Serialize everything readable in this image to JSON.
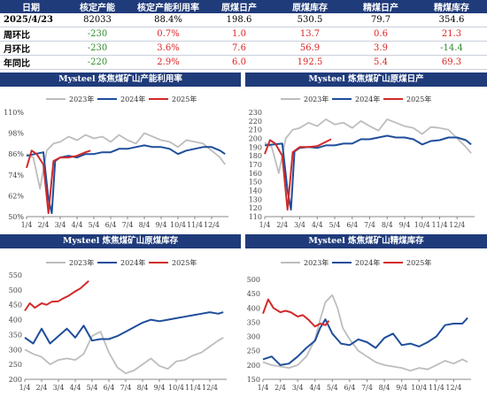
{
  "summary": {
    "headers": [
      "日期",
      "核定产能",
      "核定产能利用率",
      "原煤日产",
      "原煤库存",
      "精煤日产",
      "精煤库存"
    ],
    "rows": [
      {
        "label": "2025/4/23",
        "cells": [
          "82033",
          "88.4%",
          "198.6",
          "530.5",
          "79.7",
          "354.6"
        ],
        "kinds": [
          "neu",
          "neu",
          "neu",
          "neu",
          "neu",
          "neu"
        ]
      },
      {
        "label": "周环比",
        "cells": [
          "-230",
          "0.7%",
          "1.0",
          "13.7",
          "0.6",
          "21.3"
        ],
        "kinds": [
          "neg",
          "pos",
          "pos",
          "pos",
          "pos",
          "pos"
        ]
      },
      {
        "label": "月环比",
        "cells": [
          "-230",
          "3.6%",
          "7.6",
          "56.9",
          "3.9",
          "-14.4"
        ],
        "kinds": [
          "neg",
          "pos",
          "pos",
          "pos",
          "pos",
          "neg"
        ]
      },
      {
        "label": "年同比",
        "cells": [
          "-220",
          "2.9%",
          "6.0",
          "192.5",
          "5.4",
          "69.3"
        ],
        "kinds": [
          "neg",
          "pos",
          "pos",
          "pos",
          "pos",
          "pos"
        ]
      }
    ]
  },
  "colors": {
    "s2023": "#bdbdbd",
    "s2024": "#1f4e9b",
    "s2025": "#d22a2a",
    "header": "#1f3b7a",
    "axis": "#888888"
  },
  "chart_data": [
    {
      "type": "line",
      "title": "Mysteel 炼焦煤矿山产能利用率",
      "x_ticks": [
        "1/4",
        "2/4",
        "3/4",
        "4/4",
        "5/4",
        "6/4",
        "7/4",
        "8/4",
        "9/4",
        "10/4",
        "11/4",
        "12/4"
      ],
      "y_ticks": [
        "50%",
        "62%",
        "74%",
        "86%",
        "98%",
        "110%"
      ],
      "ylim": [
        50,
        110
      ],
      "legend": "top",
      "series": [
        {
          "name": "2023年",
          "x": [
            1,
            1.4,
            1.8,
            2.2,
            2.6,
            3,
            3.5,
            4,
            4.5,
            5,
            5.5,
            6,
            6.5,
            7,
            7.5,
            8,
            8.5,
            9,
            9.5,
            10,
            10.5,
            11,
            11.5,
            12,
            12.5,
            12.8
          ],
          "values": [
            86,
            84,
            66,
            88,
            92,
            93,
            96,
            94,
            97,
            95,
            96,
            93,
            97,
            94,
            92,
            98,
            96,
            94,
            93,
            90,
            94,
            93,
            92,
            88,
            84,
            80
          ]
        },
        {
          "name": "2024年",
          "x": [
            1,
            1.5,
            2,
            2.3,
            2.5,
            2.7,
            3,
            3.5,
            4,
            4.5,
            5,
            5.5,
            6,
            6.5,
            7,
            7.5,
            8,
            8.5,
            9,
            9.5,
            10,
            10.5,
            11,
            11.5,
            12,
            12.5,
            12.8
          ],
          "values": [
            85,
            86,
            87,
            60,
            52,
            82,
            84,
            85,
            84,
            86,
            86,
            87,
            87,
            89,
            89,
            90,
            91,
            90,
            90,
            89,
            86,
            88,
            89,
            90,
            90,
            88,
            86
          ]
        },
        {
          "name": "2025年",
          "x": [
            1,
            1.3,
            1.6,
            2,
            2.3,
            2.6,
            3,
            3.5,
            4,
            4.5,
            4.8
          ],
          "values": [
            78,
            88,
            86,
            80,
            52,
            82,
            84,
            84,
            85,
            87,
            88
          ]
        }
      ]
    },
    {
      "type": "line",
      "title": "Mysteel 炼焦煤矿山原煤日产",
      "x_ticks": [
        "1/4",
        "2/4",
        "3/4",
        "4/4",
        "5/4",
        "6/4",
        "7/4",
        "8/4",
        "9/4",
        "10/4",
        "11/4",
        "12/4"
      ],
      "y_ticks": [
        "110",
        "120",
        "130",
        "140",
        "150",
        "160",
        "170",
        "180",
        "190",
        "200",
        "210",
        "220",
        "230"
      ],
      "ylim": [
        110,
        230
      ],
      "legend": "top",
      "series": [
        {
          "name": "2023年",
          "x": [
            1,
            1.4,
            1.8,
            2.2,
            2.6,
            3,
            3.5,
            4,
            4.5,
            5,
            5.5,
            6,
            6.5,
            7,
            7.5,
            8,
            8.5,
            9,
            9.5,
            10,
            10.5,
            11,
            11.5,
            12,
            12.5,
            12.8
          ],
          "values": [
            195,
            190,
            160,
            200,
            210,
            212,
            218,
            214,
            222,
            216,
            218,
            212,
            220,
            214,
            209,
            222,
            218,
            214,
            212,
            205,
            213,
            212,
            210,
            200,
            190,
            183
          ]
        },
        {
          "name": "2024年",
          "x": [
            1,
            1.5,
            2,
            2.3,
            2.5,
            2.7,
            3,
            3.5,
            4,
            4.5,
            5,
            5.5,
            6,
            6.5,
            7,
            7.5,
            8,
            8.5,
            9,
            9.5,
            10,
            10.5,
            11,
            11.5,
            12,
            12.5,
            12.8
          ],
          "values": [
            192,
            193,
            194,
            140,
            118,
            185,
            189,
            190,
            189,
            192,
            192,
            194,
            194,
            199,
            199,
            201,
            203,
            201,
            201,
            199,
            193,
            197,
            198,
            201,
            201,
            198,
            193
          ]
        },
        {
          "name": "2025年",
          "x": [
            1,
            1.3,
            1.6,
            2,
            2.3,
            2.6,
            3,
            3.5,
            4,
            4.5,
            4.8
          ],
          "values": [
            182,
            198,
            194,
            180,
            118,
            184,
            190,
            190,
            191,
            196,
            199
          ]
        }
      ]
    },
    {
      "type": "line",
      "title": "Mysteel 炼焦煤矿山原煤库存",
      "x_ticks": [
        "1/4",
        "2/4",
        "3/4",
        "4/4",
        "5/4",
        "6/4",
        "7/4",
        "8/4",
        "9/4",
        "10/4",
        "11/4",
        "12/4"
      ],
      "y_ticks": [
        "200",
        "250",
        "300",
        "350",
        "400",
        "450",
        "500",
        "550"
      ],
      "ylim": [
        200,
        550
      ],
      "legend": "top",
      "series": [
        {
          "name": "2023年",
          "x": [
            1,
            1.5,
            2,
            2.5,
            3,
            3.5,
            4,
            4.5,
            5,
            5.5,
            6,
            6.5,
            7,
            7.5,
            8,
            8.5,
            9,
            9.5,
            10,
            10.5,
            11,
            11.5,
            12,
            12.5,
            12.8
          ],
          "values": [
            300,
            285,
            275,
            250,
            265,
            270,
            265,
            285,
            345,
            360,
            290,
            240,
            220,
            230,
            250,
            270,
            245,
            235,
            260,
            265,
            280,
            290,
            310,
            330,
            340
          ]
        },
        {
          "name": "2024年",
          "x": [
            1,
            1.5,
            2,
            2.5,
            3,
            3.5,
            4,
            4.5,
            5,
            5.5,
            6,
            6.5,
            7,
            7.5,
            8,
            8.5,
            9,
            9.5,
            10,
            10.5,
            11,
            11.5,
            12,
            12.5,
            12.8
          ],
          "values": [
            340,
            320,
            370,
            320,
            345,
            370,
            340,
            380,
            330,
            335,
            335,
            345,
            360,
            375,
            390,
            400,
            395,
            400,
            405,
            410,
            415,
            420,
            425,
            420,
            425
          ]
        },
        {
          "name": "2025年",
          "x": [
            1,
            1.3,
            1.6,
            2,
            2.3,
            2.6,
            3,
            3.3,
            3.6,
            4,
            4.3,
            4.6,
            4.8
          ],
          "values": [
            430,
            455,
            440,
            455,
            450,
            460,
            462,
            472,
            480,
            495,
            505,
            520,
            530
          ]
        }
      ]
    },
    {
      "type": "line",
      "title": "Mysteel 炼焦煤矿山精煤库存",
      "x_ticks": [
        "1/4",
        "2/4",
        "3/4",
        "4/4",
        "5/4",
        "6/4",
        "7/4",
        "8/4",
        "9/4",
        "10/4",
        "11/4",
        "12/4"
      ],
      "y_ticks": [
        "150",
        "200",
        "250",
        "300",
        "350",
        "400",
        "450",
        "500"
      ],
      "ylim": [
        150,
        500
      ],
      "legend": "top",
      "series": [
        {
          "name": "2023年",
          "x": [
            1,
            1.5,
            2,
            2.5,
            3,
            3.5,
            4,
            4.3,
            4.6,
            5,
            5.3,
            5.6,
            6,
            6.5,
            7,
            7.5,
            8,
            8.5,
            9,
            9.5,
            10,
            10.5,
            11,
            11.5,
            12,
            12.5,
            12.8
          ],
          "values": [
            210,
            200,
            195,
            190,
            200,
            230,
            290,
            360,
            420,
            445,
            400,
            330,
            290,
            250,
            230,
            210,
            200,
            195,
            190,
            180,
            190,
            185,
            200,
            215,
            205,
            220,
            210
          ]
        },
        {
          "name": "2024年",
          "x": [
            1,
            1.5,
            2,
            2.5,
            3,
            3.5,
            4,
            4.3,
            4.6,
            5,
            5.5,
            6,
            6.5,
            7,
            7.5,
            8,
            8.5,
            9,
            9.5,
            10,
            10.5,
            11,
            11.5,
            12,
            12.5,
            12.8
          ],
          "values": [
            220,
            230,
            200,
            205,
            230,
            260,
            285,
            330,
            360,
            310,
            275,
            270,
            290,
            280,
            260,
            295,
            310,
            270,
            275,
            265,
            280,
            300,
            340,
            345,
            345,
            365
          ]
        },
        {
          "name": "2025年",
          "x": [
            1,
            1.3,
            1.6,
            2,
            2.3,
            2.6,
            3,
            3.3,
            3.6,
            4,
            4.3,
            4.6,
            4.8
          ],
          "values": [
            380,
            430,
            400,
            385,
            390,
            385,
            370,
            375,
            360,
            335,
            345,
            340,
            355
          ]
        }
      ]
    }
  ]
}
